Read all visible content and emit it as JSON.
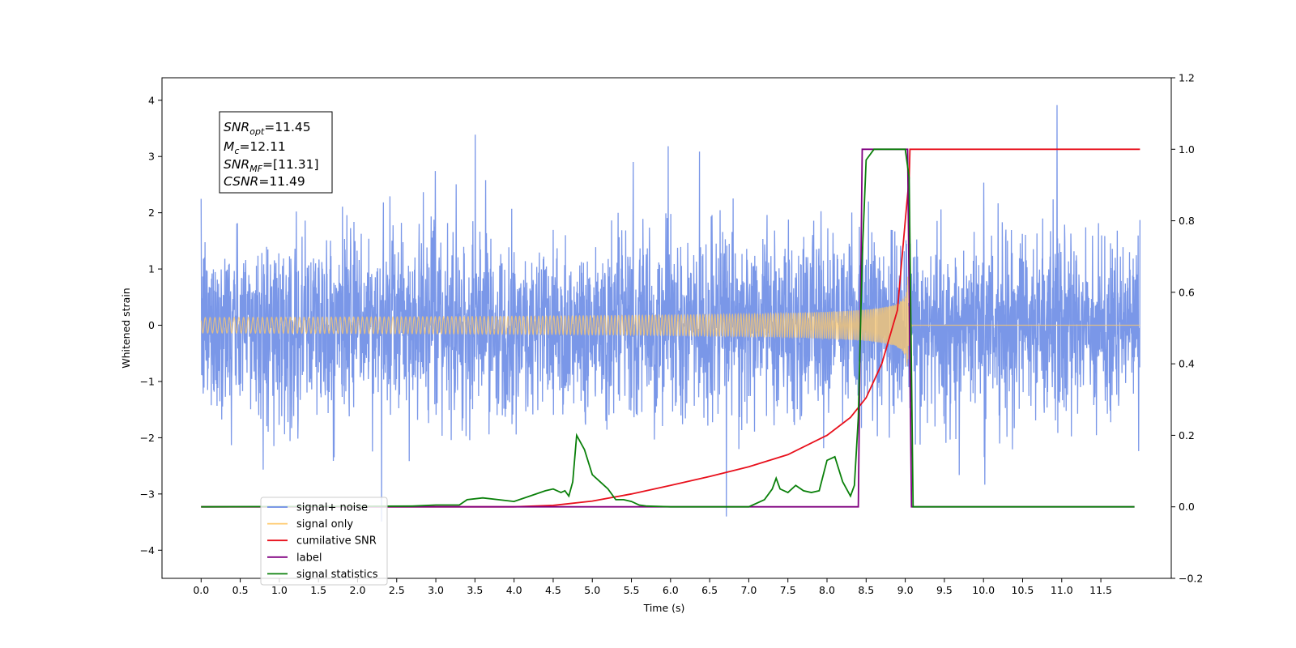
{
  "chart_data": {
    "type": "line",
    "xlabel": "Time (s)",
    "ylabel": "Whitened strain",
    "xlim": [
      -0.5,
      12.4
    ],
    "ylim": [
      -4.5,
      4.4
    ],
    "y2lim": [
      -0.2,
      1.2
    ],
    "x_ticks": [
      "0.0",
      "0.5",
      "1.0",
      "1.5",
      "2.0",
      "2.5",
      "3.0",
      "3.5",
      "4.0",
      "4.5",
      "5.0",
      "5.5",
      "6.0",
      "6.5",
      "7.0",
      "7.5",
      "8.0",
      "8.5",
      "9.0",
      "9.5",
      "10.0",
      "10.5",
      "11.0",
      "11.5"
    ],
    "y_ticks": [
      "4",
      "3",
      "2",
      "1",
      "0",
      "−1",
      "−2",
      "−3",
      "−4"
    ],
    "y2_ticks": [
      "1.2",
      "1.0",
      "0.8",
      "0.6",
      "0.4",
      "0.2",
      "0.0",
      "−0.2"
    ],
    "grid": false,
    "legend_placement": "lower-left",
    "annotation": {
      "lines": [
        {
          "base": "SNR",
          "sub": "opt",
          "value": "=11.45"
        },
        {
          "base": "M",
          "sub": "c",
          "value": "=12.11"
        },
        {
          "base": "SNR",
          "sub": "MF",
          "value": "=[11.31]"
        },
        {
          "base": "CSNR",
          "sub": "",
          "value": "=11.49"
        }
      ]
    },
    "series": [
      {
        "name": "signal+ noise",
        "color": "#6b8ce6",
        "axis": "left",
        "t_start": 0.0,
        "t_end": 12.0,
        "amplitude_rms": 1.0
      },
      {
        "name": "signal only",
        "color": "#ffc96b",
        "axis": "left",
        "chirp_start": 0.0,
        "merger_time": 9.03,
        "peak_amplitude": 0.95,
        "ringdown_end": 9.1
      },
      {
        "name": "cumilative SNR",
        "color": "#e8101c",
        "axis": "right",
        "x": [
          0.0,
          1.0,
          2.0,
          3.0,
          4.0,
          4.5,
          5.0,
          5.5,
          6.0,
          6.5,
          7.0,
          7.5,
          8.0,
          8.3,
          8.5,
          8.7,
          8.9,
          9.0,
          9.05,
          9.06,
          9.1,
          10.0,
          11.0,
          12.0
        ],
        "y": [
          0.0,
          0.0,
          0.0,
          0.0,
          0.0,
          0.004,
          0.016,
          0.036,
          0.06,
          0.085,
          0.112,
          0.146,
          0.2,
          0.25,
          0.305,
          0.4,
          0.55,
          0.8,
          0.92,
          1.0,
          1.0,
          1.0,
          1.0,
          1.0
        ]
      },
      {
        "name": "label",
        "color": "#800080",
        "axis": "right",
        "x": [
          0.0,
          8.4,
          8.45,
          9.03,
          9.08,
          11.93
        ],
        "y": [
          0.0,
          0.0,
          1.0,
          1.0,
          0.0,
          0.0
        ]
      },
      {
        "name": "signal statistics",
        "color": "#0a800a",
        "axis": "right",
        "x": [
          0.0,
          2.7,
          3.0,
          3.3,
          3.4,
          3.6,
          3.8,
          4.0,
          4.2,
          4.4,
          4.5,
          4.6,
          4.65,
          4.7,
          4.75,
          4.8,
          4.9,
          5.0,
          5.1,
          5.2,
          5.3,
          5.4,
          5.5,
          5.6,
          5.7,
          6.0,
          7.0,
          7.2,
          7.3,
          7.35,
          7.4,
          7.5,
          7.6,
          7.7,
          7.8,
          7.9,
          8.0,
          8.1,
          8.2,
          8.3,
          8.35,
          8.4,
          8.45,
          8.5,
          8.6,
          8.7,
          9.0,
          9.05,
          9.1,
          9.2,
          10.0,
          11.0,
          11.93
        ],
        "y": [
          0.0,
          0.002,
          0.005,
          0.005,
          0.02,
          0.025,
          0.02,
          0.015,
          0.03,
          0.045,
          0.05,
          0.04,
          0.045,
          0.03,
          0.07,
          0.2,
          0.16,
          0.09,
          0.07,
          0.05,
          0.02,
          0.02,
          0.015,
          0.005,
          0.002,
          0.0,
          0.0,
          0.02,
          0.05,
          0.08,
          0.05,
          0.04,
          0.06,
          0.045,
          0.04,
          0.045,
          0.13,
          0.14,
          0.07,
          0.03,
          0.06,
          0.25,
          0.7,
          0.97,
          1.0,
          1.0,
          1.0,
          0.92,
          0.0,
          0.0,
          0.0,
          0.0,
          0.0
        ]
      }
    ]
  }
}
